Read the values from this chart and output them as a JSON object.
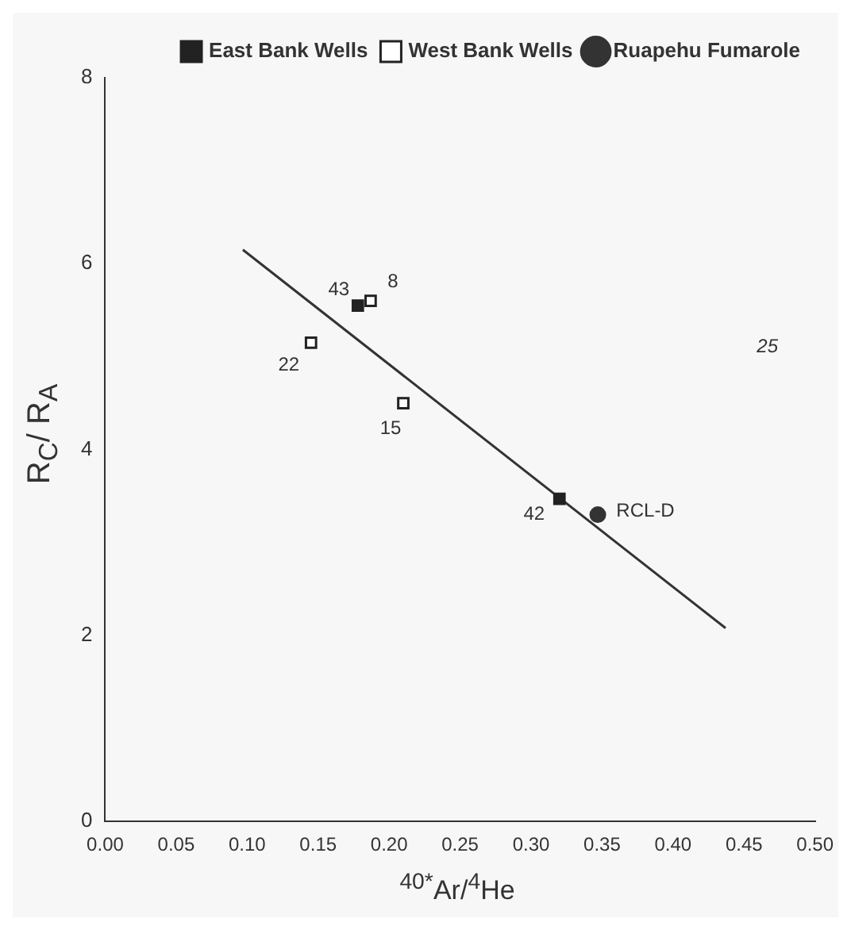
{
  "chart_data": {
    "type": "scatter",
    "xlabel": "$^{40*}$Ar/$^{4}$He",
    "ylabel": "R$_{C}$/ R$_{A}$",
    "xlim": [
      0,
      0.5
    ],
    "xticks": [
      {
        "value": 0,
        "label": "0.00"
      },
      {
        "value": 0.05,
        "label": "0.05"
      },
      {
        "value": 0.1,
        "label": "0.10"
      },
      {
        "value": 0.15,
        "label": "0.15"
      },
      {
        "value": 0.2,
        "label": "0.20"
      },
      {
        "value": 0.25,
        "label": "0.25"
      },
      {
        "value": 0.3,
        "label": "0.30"
      },
      {
        "value": 0.35,
        "label": "0.35"
      },
      {
        "value": 0.4,
        "label": "0.40"
      },
      {
        "value": 0.45,
        "label": "0.45"
      },
      {
        "value": 0.5,
        "label": "0.50"
      }
    ],
    "ylim": [
      0,
      8
    ],
    "yticks": [
      0,
      2,
      4,
      6,
      8
    ],
    "grid": false,
    "legend": "top right",
    "series": [
      {
        "name": "East Bank Wells",
        "color": "#222222",
        "marker": "square",
        "x": [
          0.178,
          0.32
        ],
        "values": [
          5.55,
          3.47
        ]
      },
      {
        "name": "West Bank Wells",
        "color": "#ffffff",
        "marker": "square",
        "x": [
          0.187,
          0.145,
          0.21
        ],
        "values": [
          5.6,
          5.15,
          4.5
        ]
      },
      {
        "name": "Ruapehu Fumarole",
        "color": "#333333",
        "marker": "circle",
        "x": [
          0.347
        ],
        "values": [
          3.3
        ]
      },
      {
        "type": "line",
        "color": "#333333",
        "marker": "none",
        "x": [
          0.097,
          0.437
        ],
        "values": [
          6.15,
          2.08
        ]
      }
    ],
    "annotations": [
      {
        "text": "43",
        "x": 0.178,
        "y": 5.55
      },
      {
        "text": "8",
        "x": 0.187,
        "y": 5.6
      },
      {
        "text": "22",
        "x": 0.145,
        "y": 5.15
      },
      {
        "text": "15",
        "x": 0.21,
        "y": 4.5
      },
      {
        "text": "42",
        "x": 0.32,
        "y": 3.47
      },
      {
        "text": "RCL-D",
        "x": 0.347,
        "y": 3.3
      },
      "25"
    ]
  }
}
